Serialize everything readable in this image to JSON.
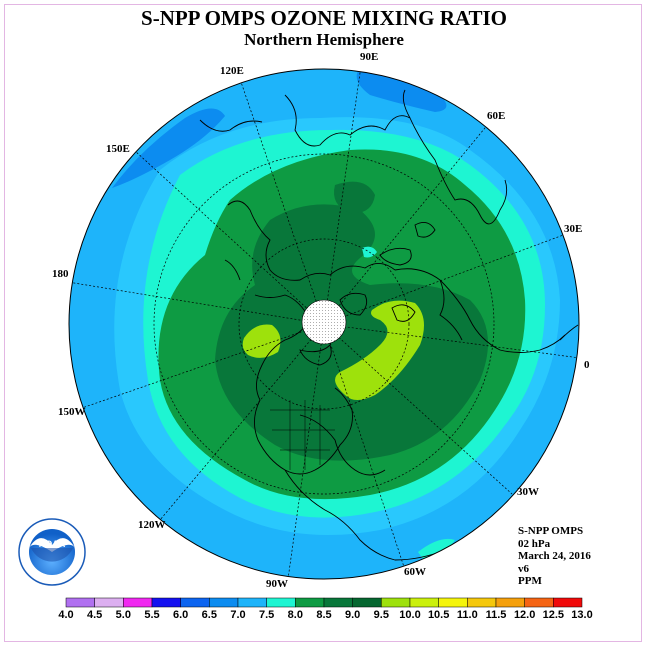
{
  "header": {
    "title": "S-NPP OMPS OZONE MIXING RATIO",
    "subtitle": "Northern Hemisphere"
  },
  "map": {
    "projection": "polar stereographic, north pole",
    "longitude_labels": [
      "90E",
      "60E",
      "30E",
      "0",
      "30W",
      "60W",
      "90W",
      "120W",
      "150W",
      "180",
      "150E",
      "120E"
    ],
    "no_data_cap": "white area with dot pattern at pole",
    "fields": [
      {
        "region": "outer ring",
        "range": "6.5-7.0",
        "color": "#1eb4fa"
      },
      {
        "region": "ring",
        "range": "7.0-7.5",
        "color": "#29c8fd"
      },
      {
        "region": "ring",
        "range": "7.5-8.0",
        "color": "#1ef5d2"
      },
      {
        "region": "interior",
        "range": "8.0-8.5",
        "color": "#0e9b43"
      },
      {
        "region": "core",
        "range": "8.5-9.0",
        "color": "#08773a"
      },
      {
        "region": "patches",
        "range": "9.0-9.5",
        "color": "#9ee10c"
      },
      {
        "region": "dark patch",
        "range": "6.0-6.5",
        "color": "#0c8cf0"
      }
    ]
  },
  "info": {
    "instrument": "S-NPP OMPS",
    "level": "02 hPa",
    "date": "March 24, 2016",
    "version": "v6",
    "units": "PPM"
  },
  "colorbar": {
    "labels": [
      "4.0",
      "4.5",
      "5.0",
      "5.5",
      "6.0",
      "6.5",
      "7.0",
      "7.5",
      "8.0",
      "8.5",
      "9.0",
      "9.5",
      "10.0",
      "10.5",
      "11.0",
      "11.5",
      "12.0",
      "12.5",
      "13.0"
    ],
    "colors": [
      "#b070f0",
      "#dcaff0",
      "#f028f0",
      "#1410f0",
      "#0c64f0",
      "#0c8cf0",
      "#1eb4fa",
      "#1ef5d2",
      "#0e9b43",
      "#08773a",
      "#056730",
      "#9ee10c",
      "#cbf00c",
      "#f5f50c",
      "#f5c80c",
      "#f5a00c",
      "#f56414",
      "#f00a0a",
      "#8c5a3c"
    ]
  },
  "logo": {
    "text": "NOAA",
    "ring_text": "NATIONAL OCEANIC AND ATMOSPHERIC ADMINISTRATION · U.S. DEPARTMENT OF COMMERCE"
  }
}
